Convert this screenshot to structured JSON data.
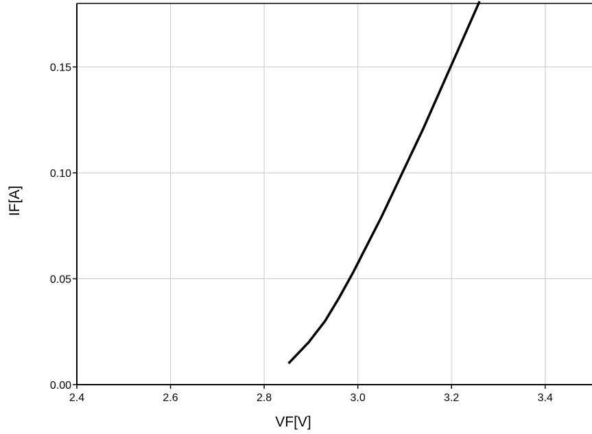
{
  "chart_data": {
    "type": "line",
    "xlabel": "VF[V]",
    "ylabel": "IF[A]",
    "xlim": [
      2.4,
      3.5
    ],
    "ylim": [
      0.0,
      0.18
    ],
    "xticks": [
      2.4,
      2.6,
      2.8,
      3.0,
      3.2,
      3.4
    ],
    "xtick_labels": [
      "2.4",
      "2.6",
      "2.8",
      "3.0",
      "3.2",
      "3.4"
    ],
    "yticks": [
      0.0,
      0.05,
      0.1,
      0.15
    ],
    "ytick_labels": [
      "0.00",
      "0.05",
      "0.10",
      "0.15"
    ],
    "grid": true,
    "line_color": "#000000",
    "series": [
      {
        "x": [
          2.852,
          2.895,
          2.93,
          2.96,
          2.99,
          3.02,
          3.05,
          3.08,
          3.11,
          3.14,
          3.17,
          3.2,
          3.23,
          3.26
        ],
        "values": [
          0.01,
          0.02,
          0.03,
          0.041,
          0.053,
          0.066,
          0.079,
          0.093,
          0.107,
          0.121,
          0.136,
          0.151,
          0.166,
          0.181
        ]
      }
    ]
  }
}
